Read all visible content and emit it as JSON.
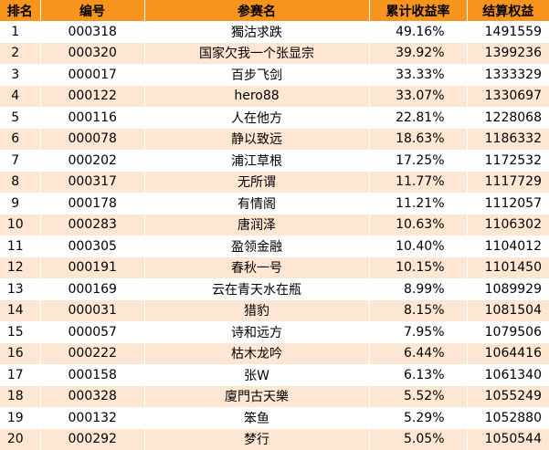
{
  "headers": {
    "rank": "排名",
    "code": "编号",
    "name": "参赛名",
    "return": "累计收益率",
    "equity": "结算权益"
  },
  "colors": {
    "header_bg": "#f7941d",
    "alt_row_bg": "#fde7d3",
    "row_bg": "#ffffff"
  },
  "rows": [
    {
      "rank": "1",
      "code": "000318",
      "name": "獨沽求跌",
      "return": "49.16%",
      "equity": "1491559"
    },
    {
      "rank": "2",
      "code": "000320",
      "name": "国家欠我一个张显宗",
      "return": "39.92%",
      "equity": "1399236"
    },
    {
      "rank": "3",
      "code": "000017",
      "name": "百步飞剑",
      "return": "33.33%",
      "equity": "1333329"
    },
    {
      "rank": "4",
      "code": "000122",
      "name": "hero88",
      "return": "33.07%",
      "equity": "1330697"
    },
    {
      "rank": "5",
      "code": "000116",
      "name": "人在他方",
      "return": "22.81%",
      "equity": "1228068"
    },
    {
      "rank": "6",
      "code": "000078",
      "name": "静以致远",
      "return": "18.63%",
      "equity": "1186332"
    },
    {
      "rank": "7",
      "code": "000202",
      "name": "浦江草根",
      "return": "17.25%",
      "equity": "1172532"
    },
    {
      "rank": "8",
      "code": "000317",
      "name": "无所谓",
      "return": "11.77%",
      "equity": "1117729"
    },
    {
      "rank": "9",
      "code": "000178",
      "name": "有情阁",
      "return": "11.21%",
      "equity": "1112057"
    },
    {
      "rank": "10",
      "code": "000283",
      "name": "唐润泽",
      "return": "10.63%",
      "equity": "1106302"
    },
    {
      "rank": "11",
      "code": "000305",
      "name": "盈领金融",
      "return": "10.40%",
      "equity": "1104012"
    },
    {
      "rank": "12",
      "code": "000191",
      "name": "春秋一号",
      "return": "10.15%",
      "equity": "1101450"
    },
    {
      "rank": "13",
      "code": "000169",
      "name": "云在青天水在瓶",
      "return": "8.99%",
      "equity": "1089929"
    },
    {
      "rank": "14",
      "code": "000031",
      "name": "猎豹",
      "return": "8.15%",
      "equity": "1081504"
    },
    {
      "rank": "15",
      "code": "000057",
      "name": "诗和远方",
      "return": "7.95%",
      "equity": "1079506"
    },
    {
      "rank": "16",
      "code": "000222",
      "name": "枯木龙吟",
      "return": "6.44%",
      "equity": "1064416"
    },
    {
      "rank": "17",
      "code": "000158",
      "name": "张W",
      "return": "6.13%",
      "equity": "1061340"
    },
    {
      "rank": "18",
      "code": "000328",
      "name": "廈門古天樂",
      "return": "5.52%",
      "equity": "1055249"
    },
    {
      "rank": "19",
      "code": "000132",
      "name": "笨鱼",
      "return": "5.29%",
      "equity": "1052880"
    },
    {
      "rank": "20",
      "code": "000292",
      "name": "梦行",
      "return": "5.05%",
      "equity": "1050544"
    }
  ]
}
